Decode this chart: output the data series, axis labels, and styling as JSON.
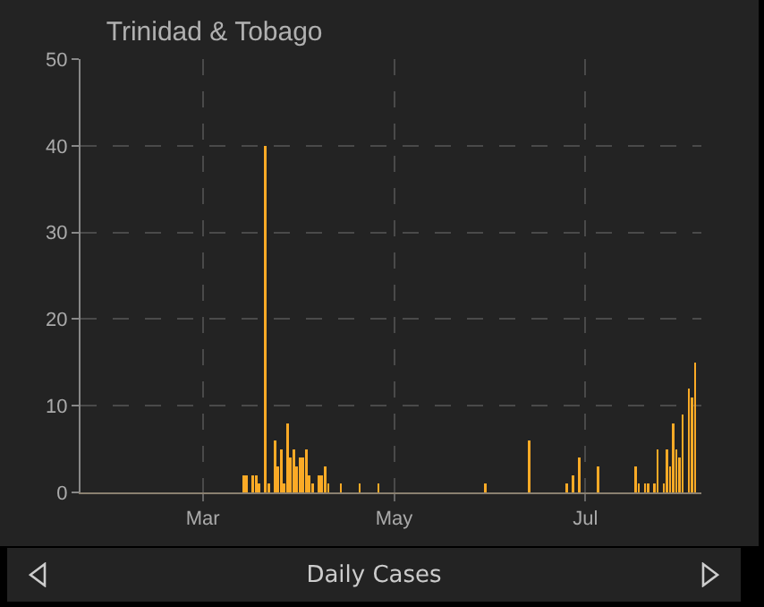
{
  "chart_data": {
    "type": "bar",
    "title": "Trinidad & Tobago",
    "annotations": [
      "Daily Cases"
    ],
    "color": "#fbaa26",
    "x": [
      "--03-14",
      "--03-15",
      "--03-17",
      "--03-18",
      "--03-19",
      "--03-21",
      "--03-22",
      "--03-24",
      "--03-25",
      "--03-26",
      "--03-27",
      "--03-28",
      "--03-29",
      "--03-30",
      "--03-31",
      "--04-01",
      "--04-02",
      "--04-03",
      "--04-04",
      "--04-05",
      "--04-07",
      "--04-08",
      "--04-09",
      "--04-10",
      "--04-14",
      "--04-20",
      "--04-26",
      "--05-30",
      "--06-13",
      "--06-25",
      "--06-27",
      "--06-29",
      "--07-05",
      "--07-17",
      "--07-18",
      "--07-20",
      "--07-21",
      "--07-23",
      "--07-24",
      "--07-26",
      "--07-27",
      "--07-28",
      "--07-29",
      "--07-30",
      "--07-31",
      "--08-01",
      "--08-03",
      "--08-04",
      "--08-05"
    ],
    "values": [
      2,
      2,
      2,
      2,
      1,
      40,
      1,
      6,
      3,
      5,
      1,
      8,
      4,
      5,
      3,
      4,
      4,
      5,
      2,
      1,
      2,
      2,
      3,
      1,
      1,
      1,
      1,
      1,
      6,
      1,
      2,
      4,
      3,
      3,
      1,
      1,
      1,
      1,
      5,
      1,
      5,
      3,
      8,
      5,
      4,
      9,
      12,
      11,
      15
    ],
    "xlim": [
      "--01-22",
      "--08-07"
    ],
    "xticks": [
      {
        "value": "--03-01",
        "label": "Mar"
      },
      {
        "value": "--05-01",
        "label": "May"
      },
      {
        "value": "--07-01",
        "label": "Jul"
      }
    ],
    "ylim": [
      0,
      50
    ],
    "yticks": [
      0,
      10,
      20,
      30,
      40,
      50
    ],
    "grid": true
  }
}
